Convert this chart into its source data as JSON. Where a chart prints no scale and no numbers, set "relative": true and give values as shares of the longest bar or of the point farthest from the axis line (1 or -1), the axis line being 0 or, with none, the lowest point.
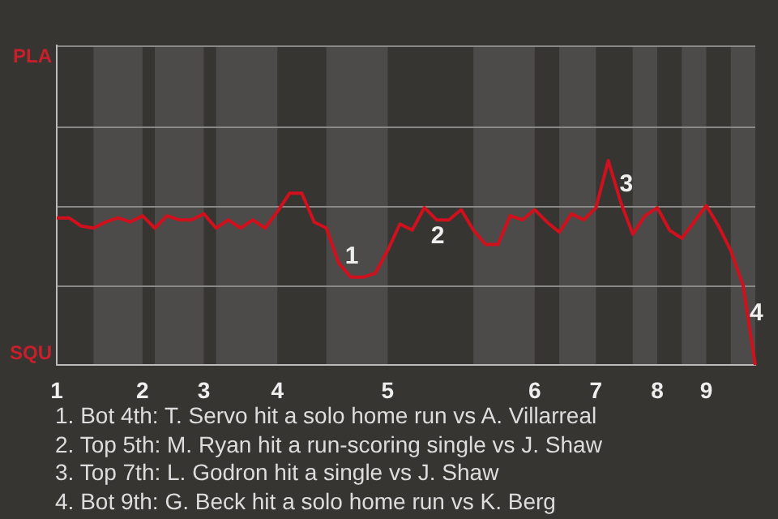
{
  "chart_data": {
    "type": "line",
    "categories": [
      "1",
      null,
      null,
      null,
      null,
      null,
      null,
      "2",
      null,
      null,
      null,
      null,
      "3",
      null,
      null,
      null,
      null,
      null,
      "4",
      null,
      null,
      null,
      null,
      null,
      null,
      null,
      null,
      "5",
      null,
      null,
      null,
      null,
      null,
      null,
      null,
      null,
      null,
      null,
      null,
      "6",
      null,
      null,
      null,
      null,
      "7",
      null,
      null,
      null,
      null,
      "8",
      null,
      null,
      null,
      "9",
      null,
      null,
      null,
      null
    ],
    "series": [
      {
        "color": "#d0101c",
        "values": [
          0.72,
          0.72,
          0.68,
          0.67,
          0.7,
          0.72,
          0.7,
          0.73,
          0.67,
          0.73,
          0.71,
          0.71,
          0.74,
          0.67,
          0.71,
          0.67,
          0.71,
          0.67,
          0.75,
          0.84,
          0.84,
          0.7,
          0.67,
          0.5,
          0.43,
          0.43,
          0.45,
          0.56,
          0.69,
          0.66,
          0.77,
          0.71,
          0.71,
          0.76,
          0.66,
          0.59,
          0.59,
          0.73,
          0.71,
          0.76,
          0.7,
          0.65,
          0.74,
          0.71,
          0.77,
          1,
          0.8,
          0.64,
          0.73,
          0.77,
          0.66,
          0.62,
          0.7,
          0.78,
          0.68,
          0.56,
          0.39,
          0
        ]
      }
    ],
    "relative": true,
    "tick_labels": "x",
    "ref_lines": [
      {
        "axis": "y",
        "value": 0.39,
        "color": "#8a8886"
      },
      {
        "axis": "y",
        "value": 0.78,
        "color": "#8a8886"
      },
      {
        "axis": "y",
        "value": 1.17,
        "color": "#8a8886"
      }
    ],
    "legend": false,
    "marker": "none",
    "line_style": "solid",
    "annotations": [
      "PLA",
      "SQU",
      "1",
      "2",
      "3",
      "4",
      "1. Bot 4th: T. Servo hit a solo home run vs A. Villarreal",
      "2. Top 5th: M. Ryan hit a run-scoring single vs J. Shaw",
      "3. Top 7th: L. Godron hit a single vs J. Shaw",
      "4. Bot 9th: G. Beck hit a solo home run vs K. Berg"
    ]
  }
}
